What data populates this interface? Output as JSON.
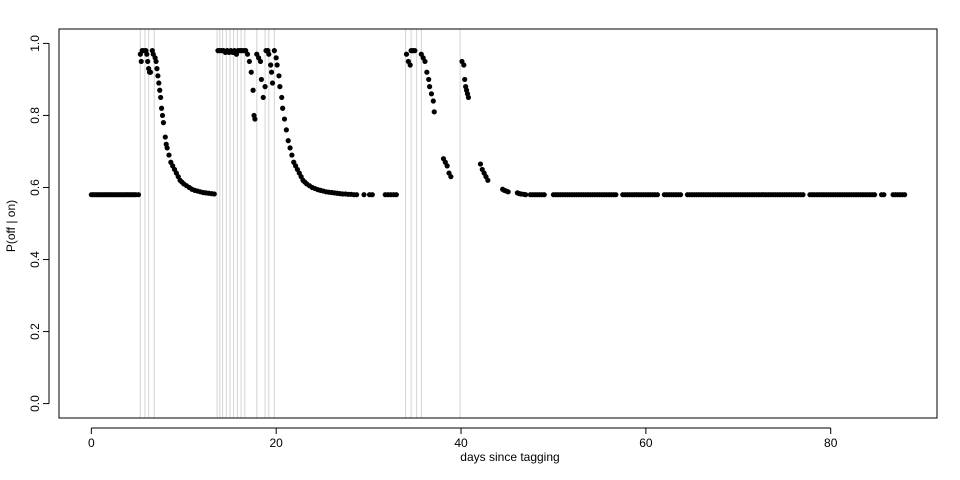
{
  "chart_data": {
    "type": "scatter",
    "title": "",
    "xlabel": "days since tagging",
    "ylabel": "P(off | on)",
    "xlim": [
      -3.5,
      91.5
    ],
    "ylim": [
      -0.04,
      1.04
    ],
    "x_ticks": [
      0,
      20,
      40,
      60,
      80
    ],
    "y_ticks": [
      0.0,
      0.2,
      0.4,
      0.6,
      0.8,
      1.0
    ],
    "x_tick_labels": [
      "0",
      "20",
      "40",
      "60",
      "80"
    ],
    "y_tick_labels": [
      "0.0",
      "0.2",
      "0.4",
      "0.6",
      "0.8",
      "1.0"
    ],
    "grid": false,
    "point_color": "#000000",
    "event_line_color": "#d3d3d3",
    "event_lines_x": [
      5.3,
      5.8,
      6.2,
      6.8,
      13.6,
      13.9,
      14.2,
      14.6,
      15.0,
      15.4,
      15.8,
      16.2,
      16.6,
      17.9,
      18.8,
      19.2,
      19.8,
      34.0,
      34.6,
      35.2,
      35.7,
      39.9
    ],
    "series": [
      {
        "points": [
          [
            0.0,
            0.58
          ],
          [
            0.2,
            0.58
          ],
          [
            0.4,
            0.58
          ],
          [
            0.6,
            0.58
          ],
          [
            0.8,
            0.58
          ],
          [
            1.0,
            0.58
          ],
          [
            1.2,
            0.58
          ],
          [
            1.4,
            0.58
          ],
          [
            1.6,
            0.58
          ],
          [
            1.8,
            0.58
          ],
          [
            2.0,
            0.58
          ],
          [
            2.2,
            0.58
          ],
          [
            2.4,
            0.58
          ],
          [
            2.6,
            0.58
          ],
          [
            2.8,
            0.58
          ],
          [
            3.0,
            0.58
          ],
          [
            3.2,
            0.58
          ],
          [
            3.4,
            0.58
          ],
          [
            3.6,
            0.58
          ],
          [
            3.8,
            0.58
          ],
          [
            4.0,
            0.58
          ],
          [
            4.2,
            0.58
          ],
          [
            4.4,
            0.58
          ],
          [
            4.6,
            0.58
          ],
          [
            4.8,
            0.58
          ],
          [
            5.1,
            0.58
          ],
          [
            5.3,
            0.97
          ],
          [
            5.4,
            0.95
          ],
          [
            5.5,
            0.98
          ],
          [
            5.7,
            0.98
          ],
          [
            5.9,
            0.98
          ],
          [
            6.0,
            0.97
          ],
          [
            6.1,
            0.95
          ],
          [
            6.2,
            0.93
          ],
          [
            6.3,
            0.92
          ],
          [
            6.4,
            0.92
          ],
          [
            6.6,
            0.98
          ],
          [
            6.7,
            0.97
          ],
          [
            6.9,
            0.96
          ],
          [
            7.0,
            0.95
          ],
          [
            7.1,
            0.93
          ],
          [
            7.2,
            0.91
          ],
          [
            7.3,
            0.89
          ],
          [
            7.4,
            0.87
          ],
          [
            7.5,
            0.85
          ],
          [
            7.6,
            0.82
          ],
          [
            7.7,
            0.8
          ],
          [
            7.8,
            0.78
          ],
          [
            8.0,
            0.74
          ],
          [
            8.1,
            0.72
          ],
          [
            8.2,
            0.71
          ],
          [
            8.4,
            0.69
          ],
          [
            8.6,
            0.67
          ],
          [
            8.8,
            0.66
          ],
          [
            9.0,
            0.65
          ],
          [
            9.2,
            0.64
          ],
          [
            9.4,
            0.63
          ],
          [
            9.6,
            0.62
          ],
          [
            9.8,
            0.615
          ],
          [
            10.0,
            0.61
          ],
          [
            10.3,
            0.605
          ],
          [
            10.6,
            0.6
          ],
          [
            10.9,
            0.595
          ],
          [
            11.2,
            0.592
          ],
          [
            11.5,
            0.59
          ],
          [
            11.8,
            0.588
          ],
          [
            12.1,
            0.586
          ],
          [
            12.4,
            0.585
          ],
          [
            12.7,
            0.584
          ],
          [
            13.0,
            0.583
          ],
          [
            13.3,
            0.582
          ],
          [
            13.7,
            0.98
          ],
          [
            13.9,
            0.98
          ],
          [
            14.1,
            0.98
          ],
          [
            14.3,
            0.98
          ],
          [
            14.5,
            0.975
          ],
          [
            14.7,
            0.98
          ],
          [
            14.9,
            0.975
          ],
          [
            15.1,
            0.98
          ],
          [
            15.3,
            0.975
          ],
          [
            15.5,
            0.98
          ],
          [
            15.7,
            0.97
          ],
          [
            15.9,
            0.98
          ],
          [
            16.1,
            0.98
          ],
          [
            16.3,
            0.98
          ],
          [
            16.5,
            0.98
          ],
          [
            16.7,
            0.98
          ],
          [
            16.9,
            0.97
          ],
          [
            17.1,
            0.95
          ],
          [
            17.3,
            0.92
          ],
          [
            17.5,
            0.87
          ],
          [
            17.6,
            0.8
          ],
          [
            17.7,
            0.79
          ],
          [
            17.9,
            0.97
          ],
          [
            18.1,
            0.96
          ],
          [
            18.3,
            0.95
          ],
          [
            18.4,
            0.9
          ],
          [
            18.6,
            0.85
          ],
          [
            18.8,
            0.88
          ],
          [
            18.9,
            0.98
          ],
          [
            19.1,
            0.98
          ],
          [
            19.2,
            0.97
          ],
          [
            19.4,
            0.94
          ],
          [
            19.5,
            0.92
          ],
          [
            19.6,
            0.89
          ],
          [
            19.8,
            0.98
          ],
          [
            20.0,
            0.96
          ],
          [
            20.1,
            0.94
          ],
          [
            20.3,
            0.91
          ],
          [
            20.4,
            0.88
          ],
          [
            20.6,
            0.85
          ],
          [
            20.7,
            0.82
          ],
          [
            20.9,
            0.79
          ],
          [
            21.1,
            0.76
          ],
          [
            21.3,
            0.73
          ],
          [
            21.5,
            0.71
          ],
          [
            21.7,
            0.69
          ],
          [
            21.9,
            0.67
          ],
          [
            22.1,
            0.66
          ],
          [
            22.3,
            0.65
          ],
          [
            22.5,
            0.64
          ],
          [
            22.7,
            0.63
          ],
          [
            22.9,
            0.62
          ],
          [
            23.1,
            0.615
          ],
          [
            23.3,
            0.61
          ],
          [
            23.6,
            0.605
          ],
          [
            23.9,
            0.6
          ],
          [
            24.2,
            0.597
          ],
          [
            24.5,
            0.594
          ],
          [
            24.8,
            0.592
          ],
          [
            25.1,
            0.59
          ],
          [
            25.4,
            0.588
          ],
          [
            25.7,
            0.587
          ],
          [
            26.0,
            0.586
          ],
          [
            26.3,
            0.585
          ],
          [
            26.6,
            0.584
          ],
          [
            26.9,
            0.583
          ],
          [
            27.2,
            0.582
          ],
          [
            27.5,
            0.582
          ],
          [
            27.8,
            0.581
          ],
          [
            28.1,
            0.581
          ],
          [
            28.4,
            0.58
          ],
          [
            28.7,
            0.58
          ],
          [
            29.5,
            0.58
          ],
          [
            30.1,
            0.58
          ],
          [
            30.4,
            0.58
          ],
          [
            31.8,
            0.58
          ],
          [
            32.1,
            0.58
          ],
          [
            32.4,
            0.58
          ],
          [
            32.7,
            0.58
          ],
          [
            33.0,
            0.58
          ],
          [
            34.1,
            0.97
          ],
          [
            34.3,
            0.95
          ],
          [
            34.5,
            0.94
          ],
          [
            34.6,
            0.98
          ],
          [
            34.8,
            0.98
          ],
          [
            35.0,
            0.98
          ],
          [
            35.7,
            0.97
          ],
          [
            35.9,
            0.96
          ],
          [
            36.1,
            0.95
          ],
          [
            36.3,
            0.92
          ],
          [
            36.5,
            0.9
          ],
          [
            36.6,
            0.88
          ],
          [
            36.8,
            0.86
          ],
          [
            37.0,
            0.84
          ],
          [
            37.1,
            0.81
          ],
          [
            38.1,
            0.68
          ],
          [
            38.3,
            0.67
          ],
          [
            38.5,
            0.66
          ],
          [
            38.7,
            0.64
          ],
          [
            38.9,
            0.63
          ],
          [
            40.1,
            0.95
          ],
          [
            40.3,
            0.94
          ],
          [
            40.4,
            0.9
          ],
          [
            40.5,
            0.88
          ],
          [
            40.6,
            0.87
          ],
          [
            40.7,
            0.86
          ],
          [
            40.8,
            0.85
          ],
          [
            42.1,
            0.665
          ],
          [
            42.3,
            0.65
          ],
          [
            42.5,
            0.64
          ],
          [
            42.7,
            0.63
          ],
          [
            42.9,
            0.62
          ],
          [
            44.5,
            0.595
          ],
          [
            44.7,
            0.592
          ],
          [
            44.9,
            0.59
          ],
          [
            45.1,
            0.588
          ],
          [
            46.1,
            0.585
          ],
          [
            46.3,
            0.583
          ],
          [
            46.5,
            0.582
          ],
          [
            46.8,
            0.581
          ],
          [
            47.0,
            0.58
          ]
        ],
        "tail_start": 47.5,
        "tail_end": 88.0,
        "tail_step": 0.25,
        "tail_value": 0.58,
        "tail_gaps": [
          [
            49.2,
            49.8
          ],
          [
            56.8,
            57.3
          ],
          [
            61.3,
            61.8
          ],
          [
            63.8,
            64.4
          ],
          [
            77.2,
            77.7
          ],
          [
            84.9,
            85.4
          ],
          [
            86.0,
            86.5
          ]
        ]
      }
    ]
  }
}
